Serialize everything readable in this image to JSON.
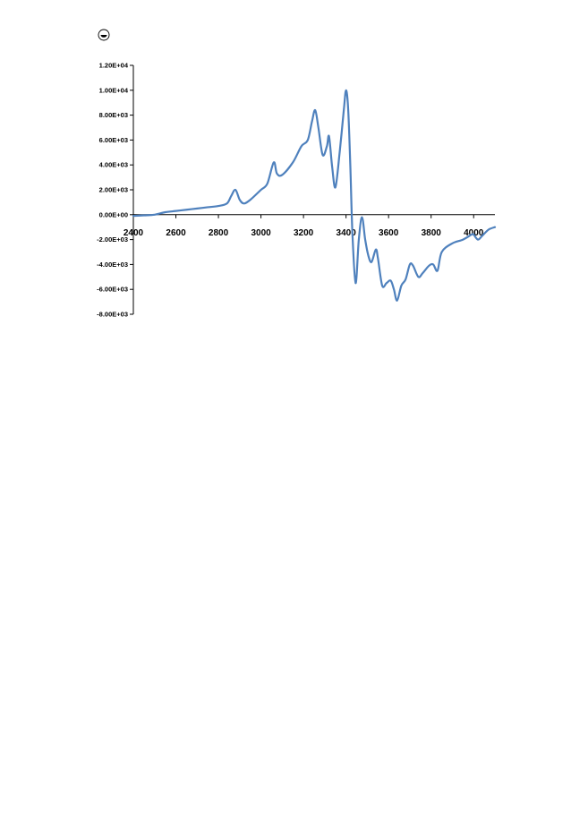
{
  "page": {
    "icon": "circle-minus-icon"
  },
  "chart_data": {
    "type": "line",
    "title": "",
    "xlabel": "",
    "ylabel": "",
    "xlim": [
      2400,
      4100
    ],
    "ylim": [
      -8000,
      12000
    ],
    "x_ticks": [
      2400,
      2600,
      2800,
      3000,
      3200,
      3400,
      3600,
      3800,
      4000
    ],
    "x_tick_labels": [
      "2400",
      "2600",
      "2800",
      "3000",
      "3200",
      "3400",
      "3600",
      "3800",
      "4000"
    ],
    "y_ticks": [
      12000,
      10000,
      8000,
      6000,
      4000,
      2000,
      0,
      -2000,
      -4000,
      -6000,
      -8000
    ],
    "y_tick_labels": [
      "1.20E+04",
      "1.00E+04",
      "8.00E+03",
      "6.00E+03",
      "4.00E+03",
      "2.00E+03",
      "0.00E+00",
      "-2.00E+03",
      "-4.00E+03",
      "-6.00E+03",
      "-8.00E+03"
    ],
    "grid": false,
    "legend": "none",
    "line_color": "#4f81bd",
    "series": [
      {
        "x": [
          2400,
          2450,
          2500,
          2550,
          2600,
          2650,
          2700,
          2750,
          2800,
          2840,
          2860,
          2880,
          2900,
          2920,
          2950,
          3000,
          3030,
          3060,
          3075,
          3100,
          3150,
          3190,
          3220,
          3240,
          3255,
          3270,
          3290,
          3310,
          3320,
          3335,
          3350,
          3370,
          3390,
          3400,
          3410,
          3420,
          3430,
          3445,
          3460,
          3475,
          3490,
          3505,
          3520,
          3540,
          3550,
          3570,
          3590,
          3610,
          3625,
          3640,
          3660,
          3680,
          3700,
          3715,
          3740,
          3760,
          3790,
          3810,
          3830,
          3850,
          3900,
          3950,
          3990,
          4000,
          4020,
          4040,
          4070,
          4100
        ],
        "y": [
          -100,
          -50,
          0,
          200,
          300,
          400,
          500,
          600,
          700,
          900,
          1500,
          2000,
          1200,
          900,
          1200,
          2000,
          2500,
          4200,
          3300,
          3200,
          4200,
          5500,
          6000,
          7500,
          8400,
          7000,
          4800,
          5500,
          6300,
          3800,
          2200,
          5000,
          8500,
          10000,
          8500,
          4000,
          -1500,
          -5500,
          -2000,
          -200,
          -2000,
          -3300,
          -3800,
          -2800,
          -3500,
          -5700,
          -5500,
          -5300,
          -6000,
          -6900,
          -5700,
          -5200,
          -4000,
          -4100,
          -5000,
          -4700,
          -4100,
          -4000,
          -4500,
          -3000,
          -2300,
          -2000,
          -1600,
          -1600,
          -2000,
          -1700,
          -1200,
          -1000
        ]
      }
    ]
  }
}
